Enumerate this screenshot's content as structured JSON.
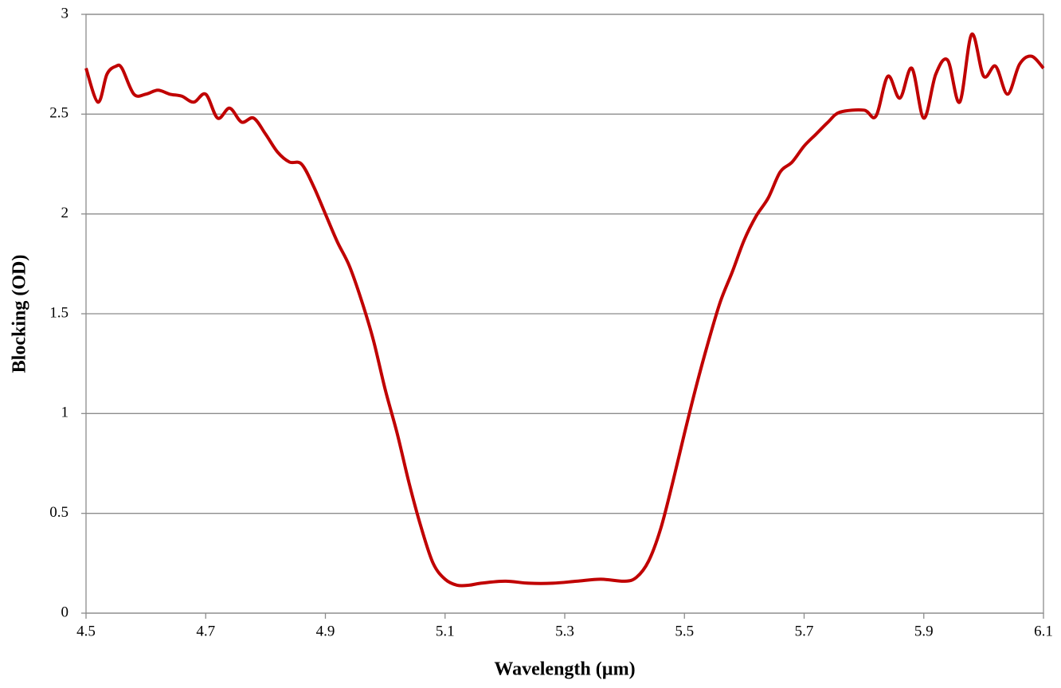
{
  "chart_data": {
    "type": "line",
    "x_label": "Wavelength (µm)",
    "y_label": "Blocking (OD)",
    "x": [
      4.5,
      4.52,
      4.535,
      4.55,
      4.56,
      4.58,
      4.6,
      4.62,
      4.64,
      4.66,
      4.68,
      4.7,
      4.72,
      4.74,
      4.76,
      4.78,
      4.8,
      4.82,
      4.84,
      4.86,
      4.88,
      4.9,
      4.92,
      4.94,
      4.96,
      4.98,
      5.0,
      5.02,
      5.04,
      5.06,
      5.08,
      5.1,
      5.12,
      5.14,
      5.16,
      5.2,
      5.24,
      5.28,
      5.32,
      5.36,
      5.4,
      5.42,
      5.44,
      5.46,
      5.48,
      5.5,
      5.52,
      5.54,
      5.56,
      5.58,
      5.6,
      5.62,
      5.64,
      5.66,
      5.68,
      5.7,
      5.72,
      5.74,
      5.76,
      5.8,
      5.82,
      5.84,
      5.86,
      5.88,
      5.9,
      5.92,
      5.94,
      5.96,
      5.98,
      6.0,
      6.02,
      6.04,
      6.06,
      6.08,
      6.1
    ],
    "series": [
      {
        "color": "#c00000",
        "values": [
          2.73,
          2.56,
          2.7,
          2.74,
          2.73,
          2.6,
          2.6,
          2.62,
          2.6,
          2.59,
          2.56,
          2.6,
          2.48,
          2.53,
          2.46,
          2.48,
          2.4,
          2.31,
          2.26,
          2.25,
          2.14,
          2.0,
          1.86,
          1.74,
          1.57,
          1.37,
          1.12,
          0.9,
          0.65,
          0.43,
          0.25,
          0.17,
          0.14,
          0.14,
          0.15,
          0.16,
          0.15,
          0.15,
          0.16,
          0.17,
          0.16,
          0.18,
          0.26,
          0.42,
          0.65,
          0.9,
          1.14,
          1.36,
          1.56,
          1.71,
          1.87,
          1.99,
          2.08,
          2.21,
          2.26,
          2.34,
          2.4,
          2.46,
          2.51,
          2.52,
          2.49,
          2.69,
          2.58,
          2.73,
          2.48,
          2.7,
          2.77,
          2.56,
          2.9,
          2.69,
          2.74,
          2.6,
          2.75,
          2.79,
          2.73
        ]
      }
    ],
    "xlim": [
      4.5,
      6.1
    ],
    "xticks": [
      4.5,
      4.7,
      4.9,
      5.1,
      5.3,
      5.5,
      5.7,
      5.9,
      6.1
    ],
    "ylim": [
      0,
      3
    ],
    "yticks": [
      0,
      0.5,
      1,
      1.5,
      2,
      2.5,
      3
    ],
    "grid": true
  }
}
